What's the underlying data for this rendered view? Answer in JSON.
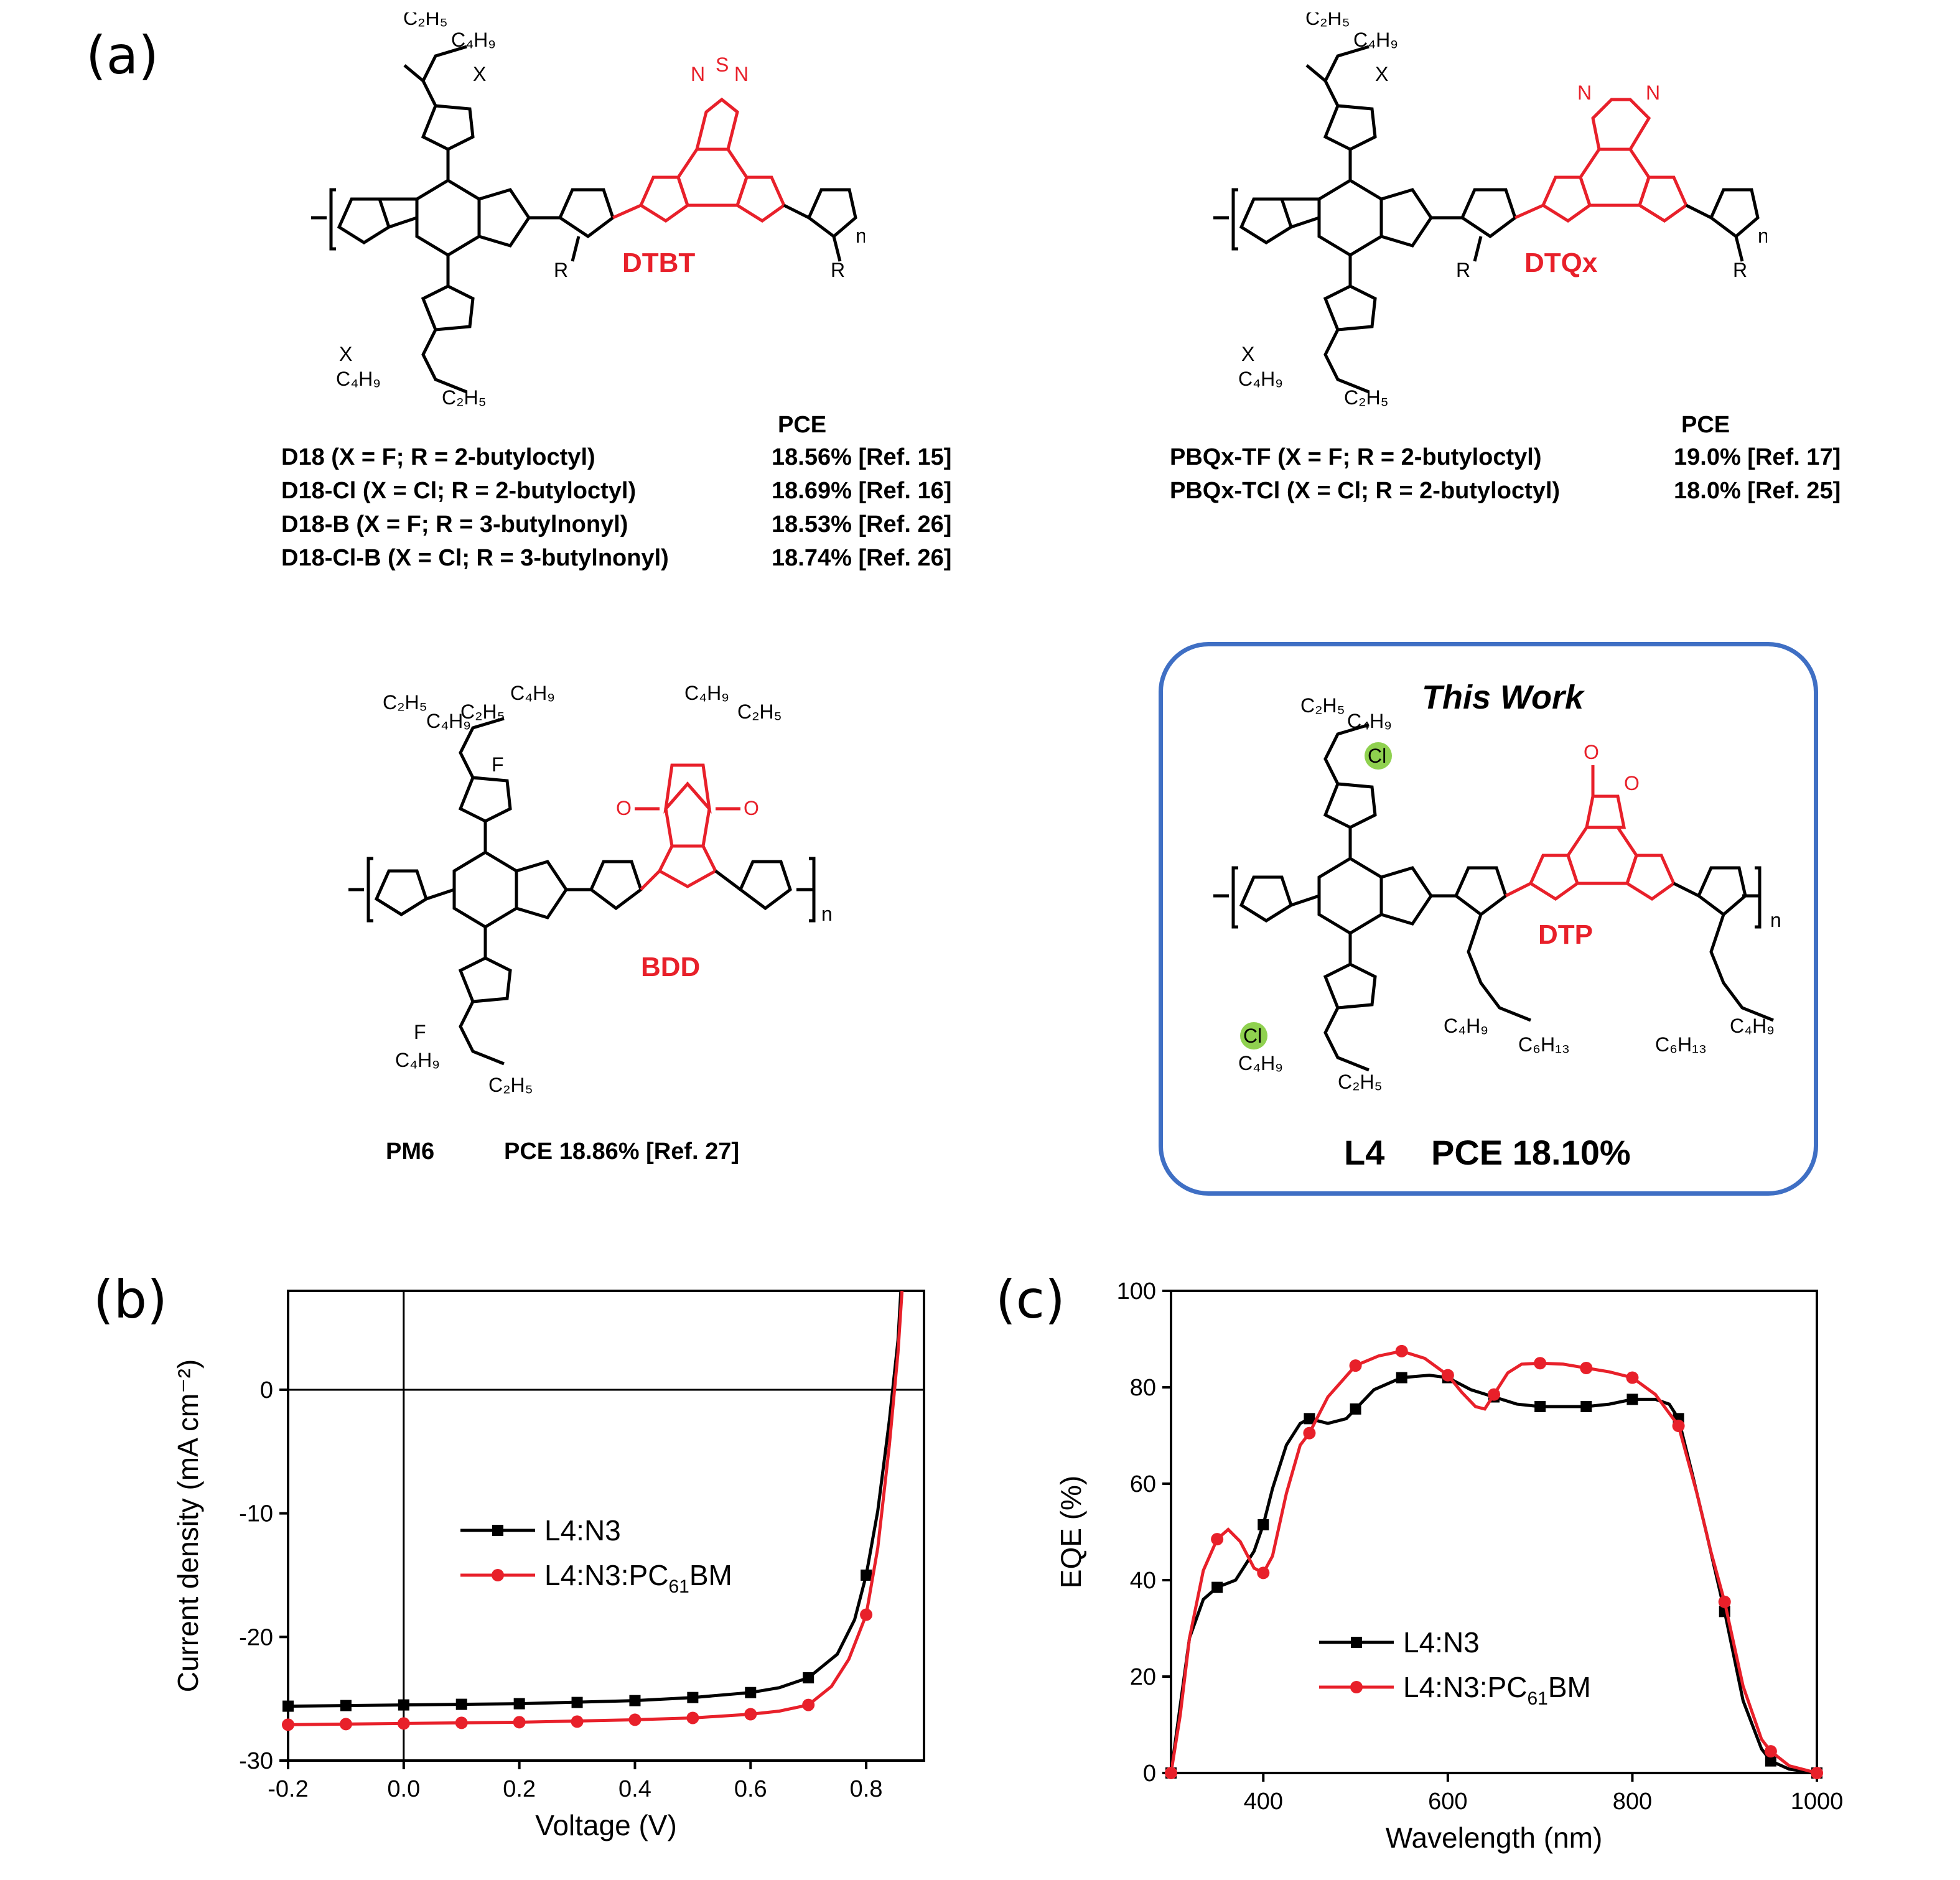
{
  "panel_labels": {
    "a": "(a)",
    "b": "(b)",
    "c": "(c)"
  },
  "structures": {
    "d18": {
      "unit_label": "DTBT",
      "pce_header": "PCE",
      "rows": [
        {
          "name": "D18 (X = F; R = 2-butyloctyl)",
          "pce": "18.56% [Ref. 15]"
        },
        {
          "name": "D18-Cl (X = Cl; R = 2-butyloctyl)",
          "pce": "18.69% [Ref. 16]"
        },
        {
          "name": "D18-B (X = F; R = 3-butylnonyl)",
          "pce": "18.53% [Ref. 26]"
        },
        {
          "name": "D18-Cl-B (X = Cl; R = 3-butylnonyl)",
          "pce": "18.74% [Ref. 26]"
        }
      ]
    },
    "pbqx": {
      "unit_label": "DTQx",
      "pce_header": "PCE",
      "rows": [
        {
          "name": "PBQx-TF (X = F; R = 2-butyloctyl)",
          "pce": "19.0% [Ref. 17]"
        },
        {
          "name": "PBQx-TCl (X = Cl; R = 2-butyloctyl)",
          "pce": "18.0% [Ref. 25]"
        }
      ]
    },
    "pm6": {
      "unit_label": "BDD",
      "caption_name": "PM6",
      "caption_pce": "PCE 18.86% [Ref. 27]"
    },
    "l4": {
      "box_title": "This Work",
      "unit_label": "DTP",
      "caption_name": "L4",
      "caption_pce": "PCE 18.10%"
    }
  },
  "colors": {
    "accent_red": "#e8202a",
    "box_blue": "#3f6fc4",
    "series_black": "#000000",
    "series_red": "#e8202a",
    "cl_green": "#8fd14f"
  },
  "chart_data": [
    {
      "type": "line",
      "xlabel": "Voltage (V)",
      "ylabel": "Current density (mA cm⁻²)",
      "xlim": [
        -0.2,
        0.9
      ],
      "ylim": [
        -30,
        8
      ],
      "xticks": [
        -0.2,
        0.0,
        0.2,
        0.4,
        0.6,
        0.8
      ],
      "xtick_labels": [
        "-0.2",
        "0.0",
        "0.2",
        "0.4",
        "0.6",
        "0.8"
      ],
      "yticks": [
        -30,
        -20,
        -10,
        0
      ],
      "ytick_labels": [
        "-30",
        "-20",
        "-10",
        "0"
      ],
      "legend_position": "center",
      "series": [
        {
          "name": "L4:N3",
          "marker": "square",
          "color": "#000000",
          "x": [
            -0.2,
            -0.1,
            0.0,
            0.1,
            0.2,
            0.3,
            0.4,
            0.5,
            0.6,
            0.7,
            0.8
          ],
          "y": [
            -25.6,
            -25.55,
            -25.5,
            -25.45,
            -25.4,
            -25.3,
            -25.15,
            -24.9,
            -24.5,
            -23.3,
            -15.0
          ],
          "curve_x": [
            -0.2,
            0.0,
            0.2,
            0.4,
            0.5,
            0.6,
            0.65,
            0.7,
            0.75,
            0.78,
            0.8,
            0.82,
            0.84,
            0.855,
            0.86
          ],
          "curve_y": [
            -25.6,
            -25.5,
            -25.4,
            -25.15,
            -24.9,
            -24.5,
            -24.1,
            -23.3,
            -21.4,
            -18.6,
            -15.0,
            -9.8,
            -2.5,
            4.0,
            8.0
          ]
        },
        {
          "name": "L4:N3:PC61BM",
          "marker": "circle",
          "color": "#e8202a",
          "x": [
            -0.2,
            -0.1,
            0.0,
            0.1,
            0.2,
            0.3,
            0.4,
            0.5,
            0.6,
            0.7,
            0.8
          ],
          "y": [
            -27.1,
            -27.05,
            -27.0,
            -26.95,
            -26.9,
            -26.85,
            -26.7,
            -26.55,
            -26.25,
            -25.5,
            -18.2
          ],
          "curve_x": [
            -0.2,
            0.0,
            0.2,
            0.4,
            0.5,
            0.6,
            0.65,
            0.7,
            0.74,
            0.77,
            0.8,
            0.82,
            0.84,
            0.855,
            0.862
          ],
          "curve_y": [
            -27.1,
            -27.0,
            -26.9,
            -26.7,
            -26.55,
            -26.25,
            -26.0,
            -25.5,
            -24.0,
            -21.8,
            -18.2,
            -12.8,
            -4.5,
            3.0,
            8.0
          ]
        }
      ],
      "legend_labels": [
        {
          "base": "L4:N3",
          "sub": "",
          "tail": ""
        },
        {
          "base": "L4:N3:PC",
          "sub": "61",
          "tail": "BM"
        }
      ]
    },
    {
      "type": "line",
      "xlabel": "Wavelength (nm)",
      "ylabel": "EQE (%)",
      "xlim": [
        300,
        1000
      ],
      "ylim": [
        0,
        100
      ],
      "xticks": [
        400,
        600,
        800,
        1000
      ],
      "xtick_labels": [
        "400",
        "600",
        "800",
        "1000"
      ],
      "yticks": [
        0,
        20,
        40,
        60,
        80,
        100
      ],
      "ytick_labels": [
        "0",
        "20",
        "40",
        "60",
        "80",
        "100"
      ],
      "legend_position": "lower-center",
      "series": [
        {
          "name": "L4:N3",
          "marker": "square",
          "color": "#000000",
          "x": [
            300,
            350,
            400,
            450,
            500,
            550,
            600,
            650,
            700,
            750,
            800,
            850,
            900,
            950,
            1000
          ],
          "y": [
            0,
            38.5,
            51.5,
            73.5,
            75.5,
            82,
            82,
            78,
            76,
            76,
            77.5,
            73.5,
            33.5,
            2.5,
            0
          ],
          "curve_x": [
            300,
            310,
            320,
            335,
            350,
            370,
            390,
            400,
            410,
            425,
            440,
            450,
            470,
            490,
            500,
            520,
            550,
            580,
            600,
            625,
            650,
            675,
            700,
            725,
            750,
            775,
            800,
            825,
            840,
            850,
            865,
            880,
            900,
            920,
            940,
            950,
            970,
            1000
          ],
          "curve_y": [
            0,
            14,
            28,
            36,
            38.5,
            40,
            46,
            51.5,
            59,
            68,
            72.5,
            73.5,
            72.5,
            73.5,
            75.5,
            79.5,
            82,
            82.5,
            82,
            79.5,
            78,
            76.5,
            76,
            76,
            76,
            76.5,
            77.5,
            77.5,
            76.5,
            73.5,
            62,
            50,
            33.5,
            15,
            5,
            2.5,
            0.8,
            0
          ]
        },
        {
          "name": "L4:N3:PC61BM",
          "marker": "circle",
          "color": "#e8202a",
          "x": [
            300,
            350,
            400,
            450,
            500,
            550,
            600,
            650,
            700,
            750,
            800,
            850,
            900,
            950,
            1000
          ],
          "y": [
            0,
            48.5,
            41.5,
            70.5,
            84.5,
            87.5,
            82.5,
            78.5,
            85,
            84,
            82,
            72,
            35.5,
            4.5,
            0
          ],
          "curve_x": [
            300,
            310,
            320,
            335,
            350,
            362,
            375,
            390,
            400,
            410,
            425,
            440,
            450,
            470,
            500,
            525,
            550,
            575,
            600,
            615,
            630,
            640,
            650,
            665,
            680,
            700,
            725,
            750,
            775,
            800,
            825,
            850,
            870,
            885,
            900,
            920,
            940,
            950,
            970,
            1000
          ],
          "curve_y": [
            0,
            12,
            28,
            42,
            48.5,
            50.5,
            48,
            42.5,
            41.5,
            45,
            58,
            68,
            70.5,
            78,
            84.5,
            86.5,
            87.5,
            86,
            82.5,
            79,
            76,
            75.5,
            78.5,
            83,
            84.8,
            85,
            84.8,
            84,
            83.2,
            82,
            78.5,
            72,
            58,
            46,
            35.5,
            18,
            7,
            4.5,
            1.5,
            0
          ]
        }
      ],
      "legend_labels": [
        {
          "base": "L4:N3",
          "sub": "",
          "tail": ""
        },
        {
          "base": "L4:N3:PC",
          "sub": "61",
          "tail": "BM"
        }
      ]
    }
  ]
}
